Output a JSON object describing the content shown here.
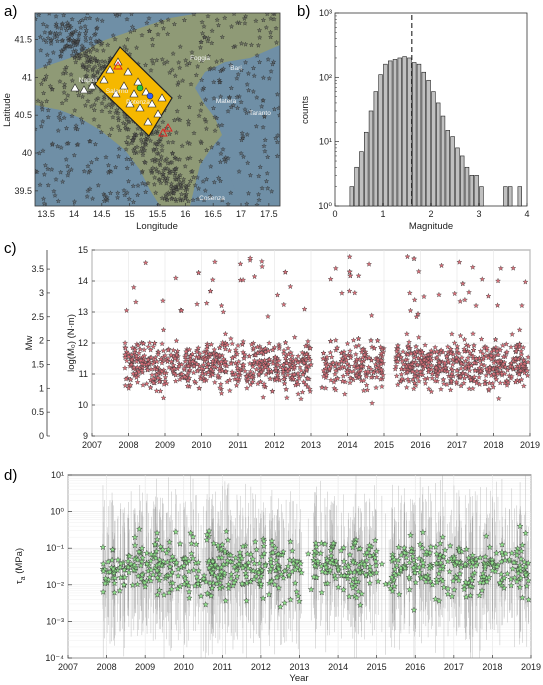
{
  "panels": {
    "a": {
      "label": "a)"
    },
    "b": {
      "label": "b)"
    },
    "c": {
      "label": "c)"
    },
    "d": {
      "label": "d)"
    }
  },
  "colors": {
    "sea": "#6f8fa6",
    "land": "#8f9a76",
    "box": "#f5b800",
    "hist_bar": "#c0c0c0",
    "star_c": "#d9707a",
    "star_d": "#8fe08a",
    "errbar": "#9a9a9a"
  },
  "map": {
    "xlabel": "Longitude",
    "ylabel": "Latitude",
    "xticks": [
      "13.5",
      "14",
      "14.5",
      "15",
      "15.5",
      "16",
      "16.5",
      "17",
      "17.5"
    ],
    "yticks": [
      "39.5",
      "40",
      "40.5",
      "41",
      "41.5"
    ],
    "xlim": [
      13.3,
      17.7
    ],
    "ylim": [
      39.3,
      41.85
    ],
    "places": [
      "Foggia",
      "Bari",
      "Napoli",
      "Matera",
      "Taranto",
      "Potenza",
      "Salerno",
      "Cosenza"
    ]
  },
  "chart_data": [
    {
      "panel": "b",
      "type": "bar",
      "xlabel": "Magnitude",
      "ylabel": "counts",
      "xlim": [
        0,
        4
      ],
      "ylim": [
        1,
        1000
      ],
      "yscale": "log",
      "xticks": [
        "0",
        "1",
        "2",
        "3",
        "4"
      ],
      "yticks": [
        "10⁰",
        "10¹",
        "10²",
        "10³"
      ],
      "bin_centers": [
        0.35,
        0.45,
        0.55,
        0.65,
        0.75,
        0.85,
        0.95,
        1.05,
        1.15,
        1.25,
        1.35,
        1.45,
        1.55,
        1.65,
        1.75,
        1.85,
        1.95,
        2.05,
        2.15,
        2.25,
        2.35,
        2.45,
        2.55,
        2.65,
        2.75,
        2.85,
        2.95,
        3.05,
        3.15,
        3.25,
        3.35,
        3.45,
        3.55,
        3.65,
        3.75,
        3.85
      ],
      "counts": [
        2,
        4,
        7,
        14,
        30,
        60,
        110,
        160,
        180,
        190,
        200,
        210,
        200,
        170,
        160,
        120,
        90,
        60,
        40,
        25,
        15,
        12,
        8,
        6,
        4,
        3,
        3,
        2,
        0,
        0,
        0,
        0,
        2,
        2,
        0,
        2
      ],
      "annotations": [
        {
          "type": "dashed-line",
          "x": 1.6
        }
      ]
    },
    {
      "panel": "c",
      "type": "scatter",
      "xlabel": "",
      "ylabel_left": "Mw",
      "ylabel_right": "log(M₀) (N·m)",
      "xlim": [
        2007,
        2019
      ],
      "ylim_left": [
        0,
        3.9
      ],
      "ylim_right": [
        9,
        15
      ],
      "xticks": [
        "2007",
        "2008",
        "2009",
        "2010",
        "2011",
        "2012",
        "2013",
        "2014",
        "2015",
        "2016",
        "2017",
        "2018",
        "2019"
      ],
      "yticks_left": [
        "0",
        "0.5",
        "1",
        "1.5",
        "2",
        "2.5",
        "3",
        "3.5"
      ],
      "yticks_right": [
        "9",
        "10",
        "11",
        "12",
        "13",
        "14",
        "15"
      ],
      "series": [
        {
          "marker": "star",
          "n_points": 3000,
          "x_range": [
            2007.9,
            2018.95
          ],
          "y_center": 11.3,
          "y_range": [
            9.8,
            14.8
          ]
        }
      ],
      "gaps": [
        [
          2013.0,
          2013.3
        ],
        [
          2015.0,
          2015.3
        ]
      ]
    },
    {
      "panel": "d",
      "type": "scatter",
      "xlabel": "Year",
      "ylabel": "τ_a (MPa)",
      "yscale": "log",
      "xlim": [
        2007,
        2019
      ],
      "ylim": [
        0.0001,
        10
      ],
      "xticks": [
        "2007",
        "2008",
        "2009",
        "2010",
        "2011",
        "2012",
        "2013",
        "2014",
        "2015",
        "2016",
        "2017",
        "2018",
        "2019"
      ],
      "yticks": [
        "10⁻⁴",
        "10⁻³",
        "10⁻²",
        "10⁻¹",
        "10⁰",
        "10¹"
      ],
      "series": [
        {
          "marker": "star",
          "error_bars": true,
          "n_points": 1600,
          "x_range": [
            2007.9,
            2018.95
          ],
          "y_center": 0.03,
          "y_range": [
            0.00012,
            2.0
          ]
        }
      ]
    }
  ]
}
